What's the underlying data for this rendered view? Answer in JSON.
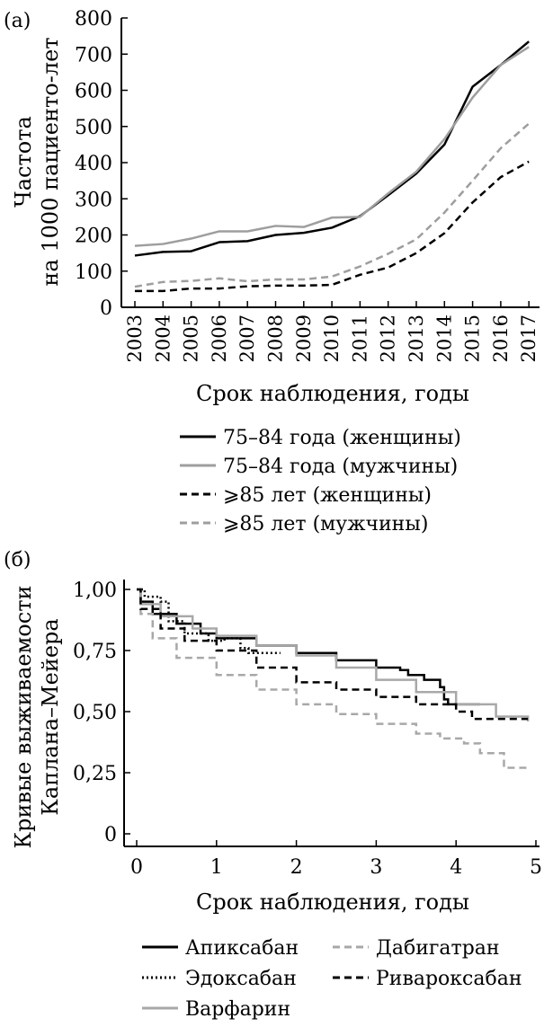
{
  "chart_data": [
    {
      "panel_label": "(а)",
      "type": "line",
      "ylabel_line1": "Частота",
      "ylabel_line2": "на 1000 пациенто-лет",
      "xlabel": "Срок наблюдения, годы",
      "ylim": [
        0,
        800
      ],
      "yticks": [
        "0",
        "100",
        "200",
        "300",
        "400",
        "500",
        "600",
        "700",
        "800"
      ],
      "categories": [
        "2003",
        "2004",
        "2005",
        "2006",
        "2007",
        "2008",
        "2009",
        "2010",
        "2011",
        "2012",
        "2013",
        "2014",
        "2015",
        "2016",
        "2017"
      ],
      "grid": false,
      "legend_position": "bottom",
      "series": [
        {
          "name": "75–84 года (женщины)",
          "color": "#000000",
          "dash": "solid",
          "values": [
            143,
            153,
            155,
            180,
            183,
            200,
            206,
            220,
            252,
            310,
            370,
            450,
            610,
            670,
            735
          ]
        },
        {
          "name": "75–84 года (мужчины)",
          "color": "#9e9e9e",
          "dash": "solid",
          "values": [
            170,
            175,
            190,
            210,
            210,
            225,
            222,
            248,
            250,
            315,
            375,
            465,
            580,
            670,
            720
          ]
        },
        {
          "name": "⩾85 лет (женщины)",
          "color": "#000000",
          "dash": "dashed",
          "values": [
            45,
            45,
            52,
            52,
            58,
            60,
            60,
            62,
            90,
            110,
            150,
            205,
            290,
            360,
            403
          ]
        },
        {
          "name": "⩾85 лет (мужчины)",
          "color": "#9e9e9e",
          "dash": "dashed",
          "values": [
            57,
            70,
            73,
            80,
            72,
            77,
            77,
            85,
            113,
            148,
            188,
            262,
            350,
            440,
            508
          ]
        }
      ]
    },
    {
      "panel_label": "(б)",
      "type": "line",
      "ylabel_line1": "Кривые выживаемости",
      "ylabel_line2": "Каплана–Мейера",
      "xlabel": "Срок наблюдения, годы",
      "xlim": [
        0,
        5
      ],
      "ylim": [
        0,
        1
      ],
      "xticks": [
        "0",
        "1",
        "2",
        "3",
        "4",
        "5"
      ],
      "yticks": [
        "0",
        "0,25",
        "0,50",
        "0,75",
        "1,00"
      ],
      "grid": false,
      "legend_position": "bottom",
      "series": [
        {
          "name": "Апиксабан",
          "color": "#000000",
          "dash": "solid",
          "points": [
            [
              0,
              1.0
            ],
            [
              0.05,
              0.95
            ],
            [
              0.2,
              0.9
            ],
            [
              0.5,
              0.86
            ],
            [
              0.8,
              0.82
            ],
            [
              1.0,
              0.8
            ],
            [
              1.5,
              0.77
            ],
            [
              2.0,
              0.74
            ],
            [
              2.5,
              0.71
            ],
            [
              3.0,
              0.68
            ],
            [
              3.3,
              0.67
            ],
            [
              3.4,
              0.65
            ],
            [
              3.6,
              0.63
            ],
            [
              3.8,
              0.6
            ],
            [
              3.85,
              0.55
            ],
            [
              3.9,
              0.53
            ],
            [
              4.3,
              0.53
            ]
          ]
        },
        {
          "name": "Эдоксабан",
          "color": "#000000",
          "dash": "dotted",
          "points": [
            [
              0,
              1.0
            ],
            [
              0.1,
              0.97
            ],
            [
              0.3,
              0.95
            ],
            [
              0.4,
              0.87
            ],
            [
              0.6,
              0.82
            ],
            [
              0.9,
              0.79
            ],
            [
              1.1,
              0.8
            ],
            [
              1.3,
              0.76
            ],
            [
              1.4,
              0.74
            ],
            [
              1.8,
              0.74
            ]
          ]
        },
        {
          "name": "Варфарин",
          "color": "#a8a8a8",
          "dash": "solid",
          "points": [
            [
              0,
              1.0
            ],
            [
              0.05,
              0.94
            ],
            [
              0.3,
              0.89
            ],
            [
              0.7,
              0.84
            ],
            [
              1.0,
              0.81
            ],
            [
              1.5,
              0.77
            ],
            [
              2.0,
              0.73
            ],
            [
              2.5,
              0.68
            ],
            [
              3.0,
              0.63
            ],
            [
              3.5,
              0.58
            ],
            [
              4.0,
              0.53
            ],
            [
              4.5,
              0.48
            ],
            [
              4.9,
              0.46
            ]
          ]
        },
        {
          "name": "Дабигатран",
          "color": "#a8a8a8",
          "dash": "dashed",
          "points": [
            [
              0,
              1.0
            ],
            [
              0.05,
              0.9
            ],
            [
              0.2,
              0.8
            ],
            [
              0.5,
              0.72
            ],
            [
              1.0,
              0.65
            ],
            [
              1.5,
              0.59
            ],
            [
              2.0,
              0.53
            ],
            [
              2.5,
              0.49
            ],
            [
              3.0,
              0.45
            ],
            [
              3.5,
              0.41
            ],
            [
              3.8,
              0.39
            ],
            [
              4.1,
              0.37
            ],
            [
              4.3,
              0.33
            ],
            [
              4.6,
              0.27
            ],
            [
              4.9,
              0.27
            ]
          ]
        },
        {
          "name": "Ривароксабан",
          "color": "#000000",
          "dash": "dashed",
          "points": [
            [
              0,
              1.0
            ],
            [
              0.05,
              0.92
            ],
            [
              0.3,
              0.84
            ],
            [
              0.6,
              0.79
            ],
            [
              1.0,
              0.75
            ],
            [
              1.5,
              0.68
            ],
            [
              2.0,
              0.62
            ],
            [
              2.5,
              0.59
            ],
            [
              3.0,
              0.56
            ],
            [
              3.5,
              0.53
            ],
            [
              4.0,
              0.5
            ],
            [
              4.2,
              0.47
            ],
            [
              4.5,
              0.47
            ],
            [
              4.9,
              0.47
            ]
          ]
        }
      ]
    }
  ]
}
